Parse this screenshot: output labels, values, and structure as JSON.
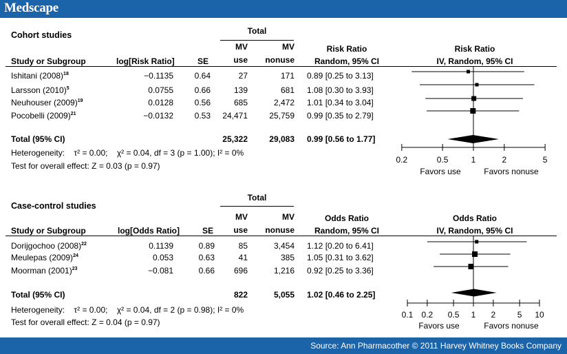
{
  "brand": "Medscape",
  "footer": {
    "source": "Source: Ann Pharmacother © 2011 Harvey Whitney Books Company"
  },
  "chart_data": [
    {
      "type": "forest",
      "section_title": "Cohort studies",
      "header": {
        "total": "Total",
        "study_col": "Study or Subgroup",
        "log_col": "log[Risk Ratio]",
        "se_col": "SE",
        "mv_use": [
          "MV",
          "use"
        ],
        "mv_nonuse": [
          "MV",
          "nonuse"
        ],
        "ratio_title": "Risk Ratio",
        "ratio_sub": "Random, 95% CI",
        "plot_title": "Risk Ratio",
        "plot_sub": "IV, Random, 95% CI"
      },
      "studies": [
        {
          "name": "Ishitani (2008)",
          "ref": "18",
          "log": "−0.1135",
          "se": "0.64",
          "use": "27",
          "nonuse": "171",
          "ci_text": "0.89 [0.25 to 3.13]",
          "est": 0.89,
          "low": 0.25,
          "high": 3.13
        },
        {
          "name": "Larsson (2010)",
          "ref": "5",
          "log": "0.0755",
          "se": "0.66",
          "use": "139",
          "nonuse": "681",
          "ci_text": "1.08 [0.30 to 3.93]",
          "est": 1.08,
          "low": 0.3,
          "high": 3.93
        },
        {
          "name": "Neuhouser (2009)",
          "ref": "19",
          "log": "0.0128",
          "se": "0.56",
          "use": "685",
          "nonuse": "2,472",
          "ci_text": "1.01 [0.34 to 3.04]",
          "est": 1.01,
          "low": 0.34,
          "high": 3.04
        },
        {
          "name": "Pocobelli (2009)",
          "ref": "21",
          "log": "−0.0132",
          "se": "0.53",
          "use": "24,471",
          "nonuse": "25,759",
          "ci_text": "0.99 [0.35 to 2.79]",
          "est": 0.99,
          "low": 0.35,
          "high": 2.79
        }
      ],
      "total": {
        "label": "Total (95% CI)",
        "use": "25,322",
        "nonuse": "29,083",
        "ci_text": "0.99 [0.56 to 1.77]",
        "est": 0.99,
        "low": 0.56,
        "high": 1.77
      },
      "heterogeneity": "Heterogeneity:    τ² = 0.00;    χ² = 0.04, df = 3 (p = 1.00); I² = 0%",
      "overall": "Test for overall effect: Z = 0.03 (p = 0.97)",
      "axis": {
        "scale": "log",
        "range": [
          0.2,
          5
        ],
        "ticks": [
          0.2,
          0.5,
          1,
          2,
          5
        ],
        "tick_labels": [
          "0.2",
          "0.5",
          "1",
          "2",
          "5"
        ]
      },
      "favors_left": "Favors use",
      "favors_right": "Favors nonuse"
    },
    {
      "type": "forest",
      "section_title": "Case-control studies",
      "header": {
        "total": "Total",
        "study_col": "Study or Subgroup",
        "log_col": "log[Odds Ratio]",
        "se_col": "SE",
        "mv_use": [
          "MV",
          "use"
        ],
        "mv_nonuse": [
          "MV",
          "nonuse"
        ],
        "ratio_title": "Odds Ratio",
        "ratio_sub": "Random, 95% CI",
        "plot_title": "Odds Ratio",
        "plot_sub": "IV, Random, 95% CI"
      },
      "studies": [
        {
          "name": "Dorijgochoo  (2008)",
          "ref": "22",
          "log": "0.1139",
          "se": "0.89",
          "use": "85",
          "nonuse": "3,454",
          "ci_text": "1.12 [0.20 to 6.41]",
          "est": 1.12,
          "low": 0.2,
          "high": 6.41
        },
        {
          "name": "Meulepas (2009)",
          "ref": "24",
          "log": "0.053",
          "se": "0.63",
          "use": "41",
          "nonuse": "385",
          "ci_text": "1.05 [0.31 to 3.62]",
          "est": 1.05,
          "low": 0.31,
          "high": 3.62
        },
        {
          "name": "Moorman (2001)",
          "ref": "23",
          "log": "−0.081",
          "se": "0.66",
          "use": "696",
          "nonuse": "1,216",
          "ci_text": "0.92 [0.25 to 3.36]",
          "est": 0.92,
          "low": 0.25,
          "high": 3.36
        }
      ],
      "total": {
        "label": "Total (95% CI)",
        "use": "822",
        "nonuse": "5,055",
        "ci_text": "1.02 [0.46 to 2.25]",
        "est": 1.02,
        "low": 0.46,
        "high": 2.25
      },
      "heterogeneity": "Heterogeneity:    τ² = 0.00;    χ² = 0.04, df = 2 (p = 0.98); I² = 0%",
      "overall": "Test for overall effect: Z = 0.04 (p = 0.97)",
      "axis": {
        "scale": "log",
        "range": [
          0.1,
          10
        ],
        "ticks": [
          0.1,
          0.2,
          0.5,
          1,
          2,
          5,
          10
        ],
        "tick_labels": [
          "0.1",
          "0.2",
          "0.5",
          "1",
          "2",
          "5",
          "10"
        ]
      },
      "favors_left": "Favors use",
      "favors_right": "Favors nonuse"
    }
  ]
}
